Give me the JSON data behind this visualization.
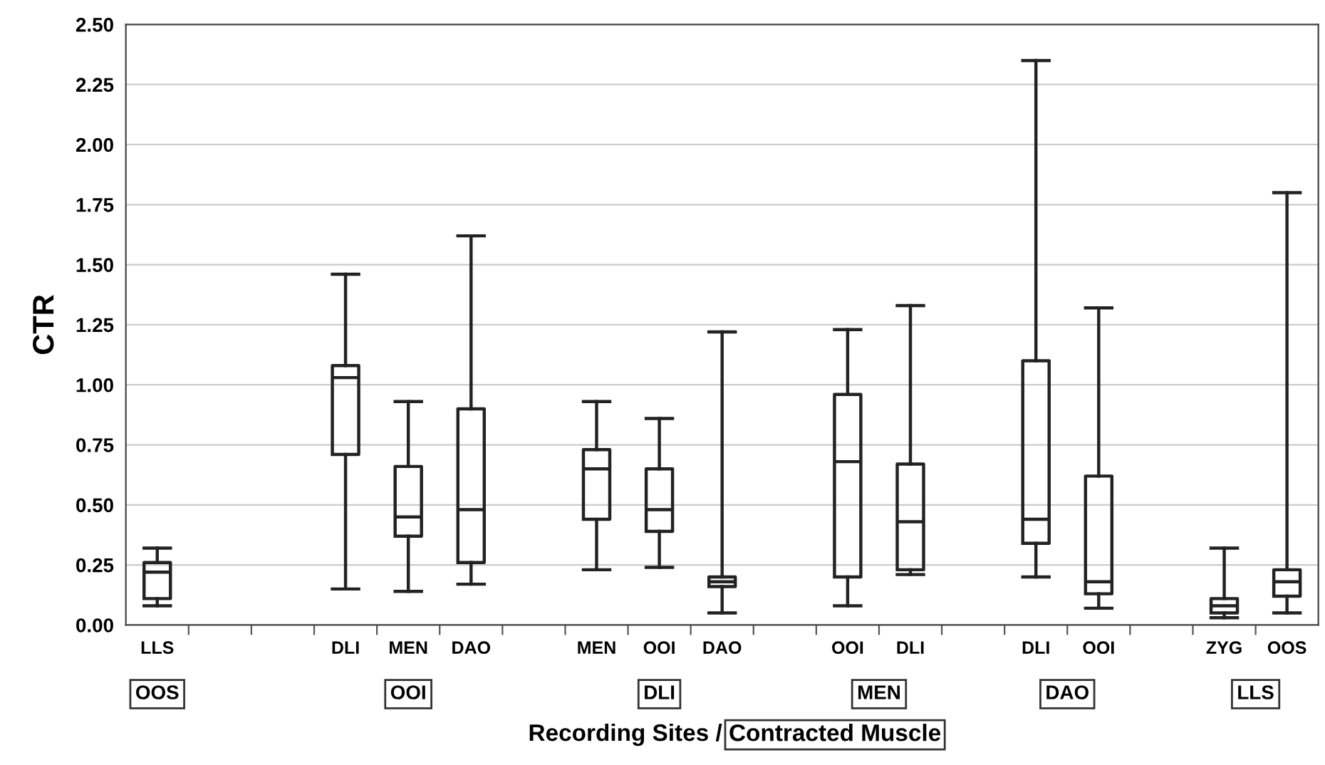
{
  "chart_data": {
    "type": "box",
    "xlabel": "Recording Sites / Contracted Muscle",
    "ylabel": "CTR",
    "categories": [
      "LLS",
      null,
      null,
      "DLI",
      "MEN",
      "DAO",
      null,
      "MEN",
      "OOI",
      "DAO",
      null,
      "OOI",
      "DLI",
      null,
      "DLI",
      "OOI",
      null,
      "ZYG",
      "OOS"
    ],
    "boxes": [
      {
        "low": 0.08,
        "q1": 0.11,
        "median": 0.22,
        "q3": 0.26,
        "high": 0.32
      },
      null,
      null,
      {
        "low": 0.15,
        "q1": 0.71,
        "median": 1.03,
        "q3": 1.08,
        "high": 1.46
      },
      {
        "low": 0.14,
        "q1": 0.37,
        "median": 0.45,
        "q3": 0.66,
        "high": 0.93
      },
      {
        "low": 0.17,
        "q1": 0.26,
        "median": 0.48,
        "q3": 0.9,
        "high": 1.62
      },
      null,
      {
        "low": 0.23,
        "q1": 0.44,
        "median": 0.65,
        "q3": 0.73,
        "high": 0.93
      },
      {
        "low": 0.24,
        "q1": 0.39,
        "median": 0.48,
        "q3": 0.65,
        "high": 0.86
      },
      {
        "low": 0.05,
        "q1": 0.16,
        "median": 0.18,
        "q3": 0.2,
        "high": 1.22
      },
      null,
      {
        "low": 0.08,
        "q1": 0.2,
        "median": 0.68,
        "q3": 0.96,
        "high": 1.23
      },
      {
        "low": 0.21,
        "q1": 0.23,
        "median": 0.43,
        "q3": 0.67,
        "high": 1.33
      },
      null,
      {
        "low": 0.2,
        "q1": 0.34,
        "median": 0.44,
        "q3": 1.1,
        "high": 2.35
      },
      {
        "low": 0.07,
        "q1": 0.13,
        "median": 0.18,
        "q3": 0.62,
        "high": 1.32
      },
      null,
      {
        "low": 0.03,
        "q1": 0.05,
        "median": 0.08,
        "q3": 0.11,
        "high": 0.32
      },
      {
        "low": 0.05,
        "q1": 0.12,
        "median": 0.18,
        "q3": 0.23,
        "high": 1.8
      }
    ],
    "annotations": [
      "OOS",
      "OOI",
      "DLI",
      "MEN",
      "DAO",
      "LLS"
    ],
    "ylim": [
      0,
      2.5
    ],
    "yticks": [
      {
        "value": 0,
        "label": "0.00"
      },
      {
        "value": 0.25,
        "label": "0.25"
      },
      {
        "value": 0.5,
        "label": "0.50"
      },
      {
        "value": 0.75,
        "label": "0.75"
      },
      {
        "value": 1.0,
        "label": "1.00"
      },
      {
        "value": 1.25,
        "label": "1.25"
      },
      {
        "value": 1.5,
        "label": "1.50"
      },
      {
        "value": 1.75,
        "label": "1.75"
      },
      {
        "value": 2.0,
        "label": "2.00"
      },
      {
        "value": 2.25,
        "label": "2.25"
      },
      {
        "value": 2.5,
        "label": "2.50"
      }
    ],
    "grid": "y"
  }
}
